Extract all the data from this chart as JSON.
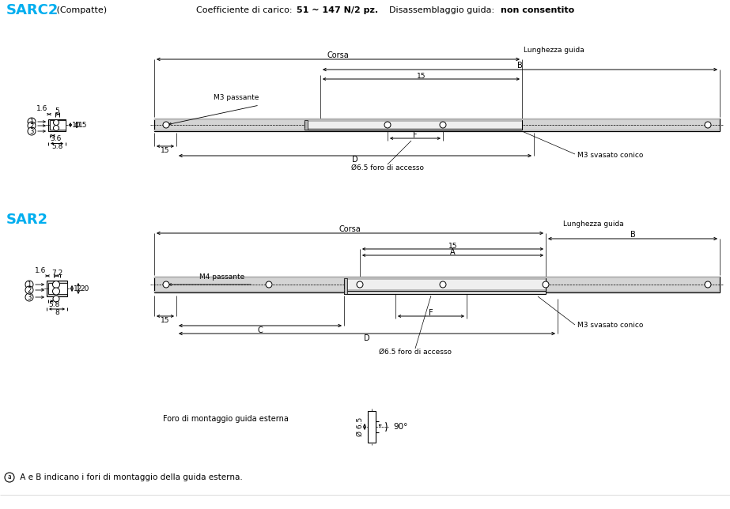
{
  "title_sarc2": "SARC2",
  "title_sarc2_sub": " (Compatte)",
  "title_sar2": "SAR2",
  "header_text": "Coefficiente di carico: ",
  "header_bold": "51 ~ 147 N/2 pz.",
  "header_text2": "  Disassemblaggio guida: ",
  "header_bold2": "non consentito",
  "foro_label": "Foro di montaggio guida esterna",
  "angle_label": "90°",
  "lunghezza_guida": "Lunghezza guida",
  "corsa": "Corsa",
  "m3_passante": "M3 passante",
  "m4_passante": "M4 passante",
  "m3_svasato": "M3 svasato conico",
  "foro_accesso": "Ø6.5 foro di accesso",
  "note_symbol": "ⓐ",
  "note_text": "A e B indicano i fori di montaggio della guida esterna.",
  "color_blue": "#00AEEF",
  "color_black": "#000000",
  "color_lgray": "#D4D4D4",
  "color_mgray": "#BABABA",
  "color_dgray": "#888888"
}
